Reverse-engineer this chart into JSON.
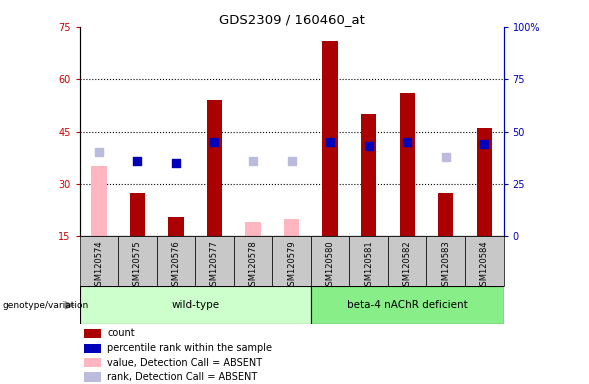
{
  "title": "GDS2309 / 160460_at",
  "samples": [
    "GSM120574",
    "GSM120575",
    "GSM120576",
    "GSM120577",
    "GSM120578",
    "GSM120579",
    "GSM120580",
    "GSM120581",
    "GSM120582",
    "GSM120583",
    "GSM120584"
  ],
  "count_values": [
    null,
    27.5,
    20.5,
    54,
    null,
    null,
    71,
    50,
    56,
    27.5,
    46
  ],
  "count_absent": [
    35,
    null,
    null,
    null,
    null,
    null,
    null,
    null,
    null,
    null,
    null
  ],
  "percentile_values": [
    null,
    36,
    35,
    45,
    null,
    null,
    45,
    43,
    45,
    null,
    44
  ],
  "percentile_absent": [
    40,
    null,
    null,
    null,
    36,
    36,
    null,
    null,
    null,
    38,
    null
  ],
  "pink_absent": [
    null,
    null,
    null,
    null,
    19,
    20,
    null,
    null,
    null,
    null,
    null
  ],
  "ylim_left": [
    15,
    75
  ],
  "ylim_right": [
    0,
    100
  ],
  "yticks_left": [
    15,
    30,
    45,
    60,
    75
  ],
  "yticks_right": [
    0,
    25,
    50,
    75,
    100
  ],
  "bar_color_red": "#AA0000",
  "bar_color_pink": "#FFB6C1",
  "square_color_blue": "#0000BB",
  "square_color_lightblue": "#BBBBDD",
  "left_axis_color": "#CC0000",
  "right_axis_color": "#0000BB",
  "wildtype_bg": "#CCFFCC",
  "beta4_bg": "#88EE88",
  "header_bg": "#C8C8C8",
  "gridline_y": [
    30,
    45,
    60
  ]
}
